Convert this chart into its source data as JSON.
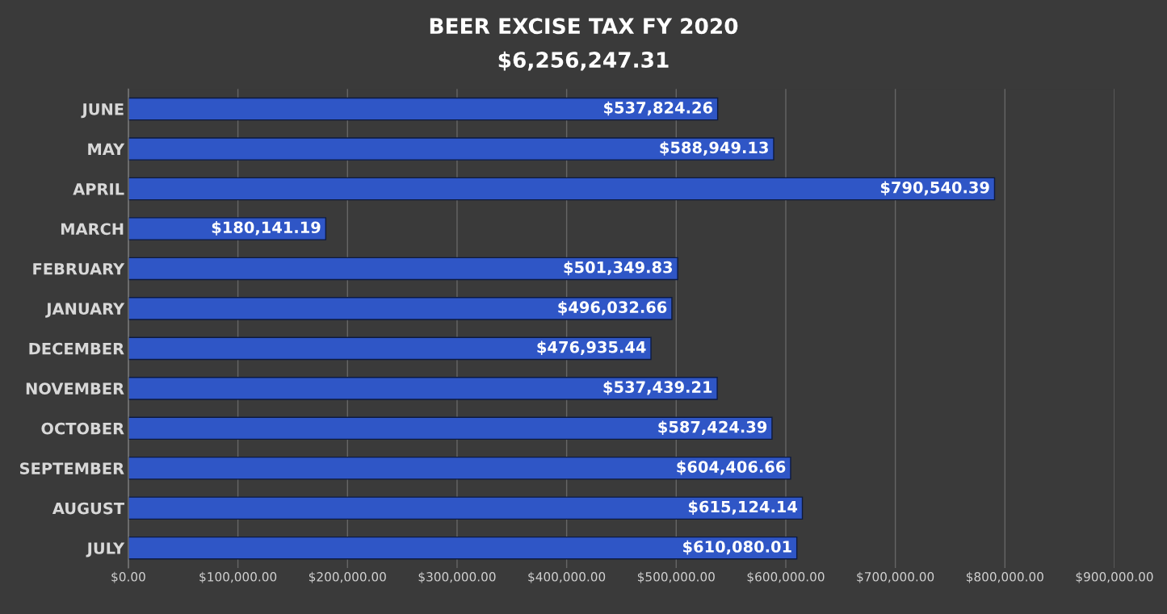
{
  "chart_data": {
    "type": "bar",
    "orientation": "horizontal",
    "title": "BEER EXCISE TAX FY 2020",
    "subtitle": "$6,256,247.31",
    "categories": [
      "JUNE",
      "MAY",
      "APRIL",
      "MARCH",
      "FEBRUARY",
      "JANUARY",
      "DECEMBER",
      "NOVEMBER",
      "OCTOBER",
      "SEPTEMBER",
      "AUGUST",
      "JULY"
    ],
    "values": [
      537824.26,
      588949.13,
      790540.39,
      180141.19,
      501349.83,
      496032.66,
      476935.44,
      537439.21,
      587424.39,
      604406.66,
      615124.14,
      610080.01
    ],
    "value_labels": [
      "$537,824.26",
      "$588,949.13",
      "$790,540.39",
      "$180,141.19",
      "$501,349.83",
      "$496,032.66",
      "$476,935.44",
      "$537,439.21",
      "$587,424.39",
      "$604,406.66",
      "$615,124.14",
      "$610,080.01"
    ],
    "color": "#2f56c6",
    "xlim": [
      0,
      900000
    ],
    "xticks": [
      {
        "value": 0,
        "label": "$0.00"
      },
      {
        "value": 100000,
        "label": "$100,000.00"
      },
      {
        "value": 200000,
        "label": "$200,000.00"
      },
      {
        "value": 300000,
        "label": "$300,000.00"
      },
      {
        "value": 400000,
        "label": "$400,000.00"
      },
      {
        "value": 500000,
        "label": "$500,000.00"
      },
      {
        "value": 600000,
        "label": "$600,000.00"
      },
      {
        "value": 700000,
        "label": "$700,000.00"
      },
      {
        "value": 800000,
        "label": "$800,000.00"
      },
      {
        "value": 900000,
        "label": "$900,000.00"
      }
    ],
    "grid": "x"
  }
}
